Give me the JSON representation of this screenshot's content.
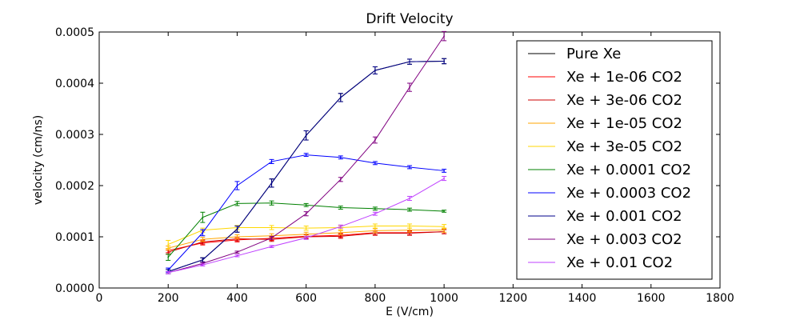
{
  "chart_data": {
    "type": "line",
    "title": "Drift Velocity",
    "xlabel": "E (V/cm)",
    "ylabel": "velocity (cm/ns)",
    "xlim": [
      0,
      1800
    ],
    "ylim": [
      0,
      0.0005
    ],
    "x_ticks": [
      "0",
      "200",
      "400",
      "600",
      "800",
      "1000",
      "1200",
      "1400",
      "1600",
      "1800"
    ],
    "y_ticks": [
      "0.0000",
      "0.0001",
      "0.0002",
      "0.0003",
      "0.0004",
      "0.0005"
    ],
    "grid": false,
    "legend_position": "top-right",
    "x": [
      200,
      300,
      400,
      500,
      600,
      700,
      800,
      900,
      1000
    ],
    "series": [
      {
        "name": "Pure Xe",
        "color": "#000000",
        "values": [
          3.2e-05,
          5.5e-05,
          0.000115,
          0.000205,
          0.000298,
          0.000372,
          0.000425,
          0.000442,
          0.000443
        ],
        "errors": [
          4e-06,
          4e-06,
          6e-06,
          8e-06,
          9e-06,
          8e-06,
          7e-06,
          5e-06,
          5e-06
        ]
      },
      {
        "name": "Xe + 1e-06 CO2",
        "color": "#ff0000",
        "values": [
          7.3e-05,
          8.8e-05,
          9.4e-05,
          9.7e-05,
          0.000101,
          0.000103,
          0.000108,
          0.000108,
          0.00011
        ],
        "errors": [
          4e-06,
          4e-06,
          4e-06,
          4e-06,
          4e-06,
          4e-06,
          4e-06,
          4e-06,
          4e-06
        ]
      },
      {
        "name": "Xe + 3e-06 CO2",
        "color": "#cc0000",
        "values": [
          7e-05,
          9e-05,
          9.6e-05,
          9.5e-05,
          0.0001,
          0.000101,
          0.000107,
          0.000107,
          0.00011
        ],
        "errors": [
          4e-06,
          4e-06,
          4e-06,
          4e-06,
          4e-06,
          4e-06,
          4e-06,
          4e-06,
          4e-06
        ]
      },
      {
        "name": "Xe + 1e-05 CO2",
        "color": "#ffa500",
        "values": [
          7.8e-05,
          9.5e-05,
          0.0001,
          0.000102,
          0.000105,
          0.000108,
          0.000112,
          0.000113,
          0.000113
        ],
        "errors": [
          4e-06,
          4e-06,
          4e-06,
          4e-06,
          4e-06,
          4e-06,
          4e-06,
          4e-06,
          4e-06
        ]
      },
      {
        "name": "Xe + 3e-05 CO2",
        "color": "#ffd700",
        "values": [
          8.5e-05,
          0.000113,
          0.000118,
          0.000118,
          0.000117,
          0.000118,
          0.000121,
          0.000121,
          0.00012
        ],
        "errors": [
          8e-06,
          4e-06,
          4e-06,
          4e-06,
          4e-06,
          4e-06,
          4e-06,
          4e-06,
          4e-06
        ]
      },
      {
        "name": "Xe + 0.0001 CO2",
        "color": "#008000",
        "values": [
          6e-05,
          0.000138,
          0.000165,
          0.000166,
          0.000162,
          0.000157,
          0.000155,
          0.000153,
          0.00015
        ],
        "errors": [
          6e-06,
          1e-05,
          4e-06,
          4e-06,
          3e-06,
          3e-06,
          3e-06,
          3e-06,
          2e-06
        ]
      },
      {
        "name": "Xe + 0.0003 CO2",
        "color": "#0000ff",
        "values": [
          3.5e-05,
          0.000108,
          0.0002,
          0.000247,
          0.00026,
          0.000255,
          0.000244,
          0.000236,
          0.000229
        ],
        "errors": [
          4e-06,
          6e-06,
          8e-06,
          4e-06,
          3e-06,
          3e-06,
          3e-06,
          3e-06,
          3e-06
        ]
      },
      {
        "name": "Xe + 0.001 CO2",
        "color": "#00008b",
        "values": [
          3.2e-05,
          5.5e-05,
          0.000115,
          0.000205,
          0.000298,
          0.000372,
          0.000425,
          0.000442,
          0.000443
        ],
        "errors": [
          4e-06,
          4e-06,
          6e-06,
          8e-06,
          9e-06,
          8e-06,
          7e-06,
          5e-06,
          5e-06
        ]
      },
      {
        "name": "Xe + 0.003 CO2",
        "color": "#800080",
        "values": [
          3e-05,
          4.8e-05,
          7e-05,
          9.8e-05,
          0.000145,
          0.000212,
          0.000289,
          0.000392,
          0.000492
        ],
        "errors": [
          2e-06,
          2e-06,
          2e-06,
          3e-06,
          4e-06,
          4e-06,
          6e-06,
          8e-06,
          9e-06
        ]
      },
      {
        "name": "Xe + 0.01 CO2",
        "color": "#bf40ff",
        "values": [
          3e-05,
          4.5e-05,
          6.3e-05,
          8.1e-05,
          9.8e-05,
          0.00012,
          0.000145,
          0.000175,
          0.000214
        ],
        "errors": [
          2e-06,
          2e-06,
          2e-06,
          2e-06,
          3e-06,
          3e-06,
          3e-06,
          4e-06,
          4e-06
        ]
      }
    ]
  }
}
